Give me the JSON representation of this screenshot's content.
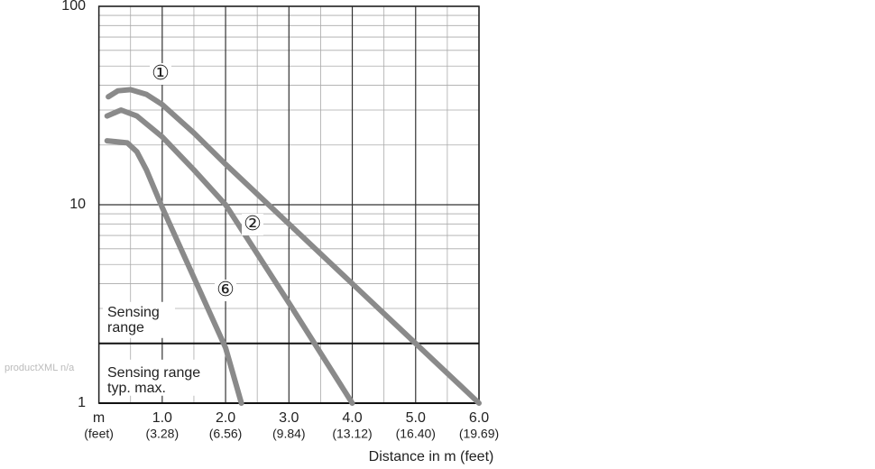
{
  "chart_data": {
    "type": "line",
    "watermark": "productXML n/a",
    "x_label": "Distance in m (feet)",
    "xlim": [
      0,
      6
    ],
    "xticks": [
      {
        "value": 0,
        "label": "m"
      },
      {
        "value": 1,
        "label": "1.0"
      },
      {
        "value": 2,
        "label": "2.0"
      },
      {
        "value": 3,
        "label": "3.0"
      },
      {
        "value": 4,
        "label": "4.0"
      },
      {
        "value": 5,
        "label": "5.0"
      },
      {
        "value": 6,
        "label": "6.0"
      }
    ],
    "xtick_sublabels": [
      "(feet)",
      "(3.28)",
      "(6.56)",
      "(9.84)",
      "(13.12)",
      "(16.40)",
      "(19.69)"
    ],
    "xminor": [
      0.5,
      1.5,
      2.5,
      3.5,
      4.5,
      5.5
    ],
    "ylim": [
      1,
      100
    ],
    "yticks": [
      1,
      10,
      100
    ],
    "yminor": [
      2,
      3,
      4,
      5,
      6,
      7,
      8,
      9,
      20,
      30,
      40,
      50,
      60,
      70,
      80,
      90
    ],
    "log_y": true,
    "grid": true,
    "threshold": {
      "value": 2,
      "above_label": [
        "Sensing",
        "range"
      ],
      "below_label": [
        "Sensing range",
        "typ. max."
      ]
    },
    "series": [
      {
        "name": "①",
        "color": "#8a8a8a",
        "x": [
          0.15,
          0.3,
          0.5,
          0.75,
          1.0,
          1.5,
          2.0,
          3.0,
          4.0,
          5.0,
          6.0
        ],
        "values": [
          35,
          37.5,
          38,
          36,
          32,
          23,
          16,
          8,
          4,
          2,
          1
        ]
      },
      {
        "name": "②",
        "color": "#8a8a8a",
        "x": [
          0.13,
          0.35,
          0.6,
          1.0,
          1.5,
          2.0,
          3.0,
          4.0
        ],
        "values": [
          28,
          30,
          28,
          22,
          15,
          10,
          3.2,
          1
        ]
      },
      {
        "name": "⑥",
        "color": "#8a8a8a",
        "x": [
          0.13,
          0.45,
          0.6,
          0.75,
          1.0,
          1.5,
          2.0,
          2.25
        ],
        "values": [
          21,
          20.5,
          18.5,
          15,
          9.7,
          4.3,
          1.9,
          1
        ]
      }
    ]
  }
}
